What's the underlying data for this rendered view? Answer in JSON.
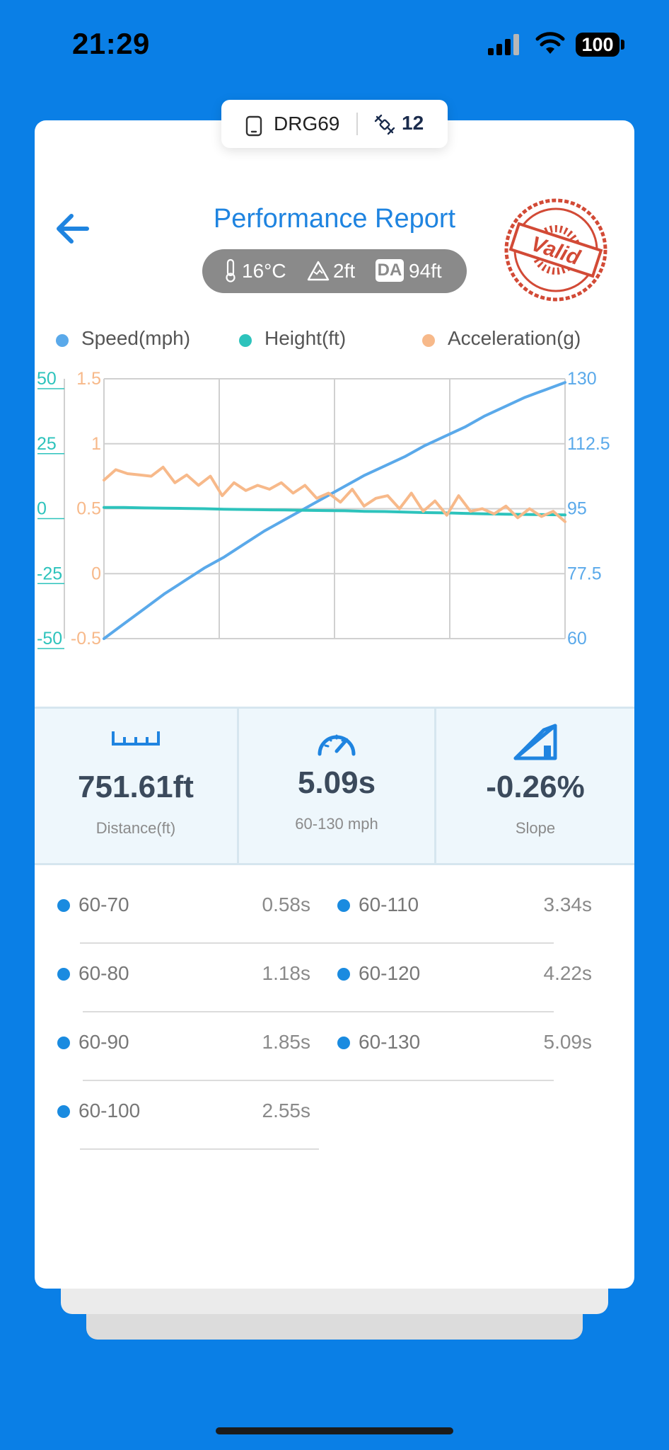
{
  "status_bar": {
    "time": "21:29",
    "battery": "100"
  },
  "device": {
    "name": "DRG69",
    "satellites": "12"
  },
  "header": {
    "title": "Performance Report",
    "stamp": "Valid"
  },
  "conditions": {
    "temperature": "16°C",
    "altitude": "2ft",
    "da_label": "DA",
    "density_altitude": "94ft"
  },
  "legend": [
    {
      "label": "Speed(mph)",
      "color": "#5aa9ea"
    },
    {
      "label": "Height(ft)",
      "color": "#2dc3bc"
    },
    {
      "label": "Acceleration(g)",
      "color": "#f7b98a"
    }
  ],
  "chart_data": {
    "type": "line",
    "axes": {
      "height_left": {
        "ticks": [
          "50",
          "25",
          "0",
          "-25",
          "-50"
        ],
        "range": [
          -50,
          50
        ],
        "color": "#2dc3bc"
      },
      "accel_left": {
        "ticks": [
          "1.5",
          "1",
          "0.5",
          "0",
          "-0.5"
        ],
        "range": [
          -0.5,
          1.5
        ],
        "color": "#f7b98a"
      },
      "speed_right": {
        "ticks": [
          "130",
          "112.5",
          "95",
          "77.5",
          "60"
        ],
        "range": [
          60,
          130
        ],
        "color": "#5aa9ea"
      }
    },
    "grid": true,
    "series": [
      {
        "name": "Speed(mph)",
        "axis": "speed_right",
        "color": "#5aa9ea",
        "values": [
          60,
          64,
          68,
          72,
          75.5,
          79,
          82,
          85.5,
          89,
          92,
          95,
          98,
          101,
          104,
          106.5,
          109,
          112,
          114.5,
          117,
          120,
          122.5,
          125,
          127,
          129
        ]
      },
      {
        "name": "Height(ft)",
        "axis": "height_left",
        "color": "#2dc3bc",
        "values": [
          0.5,
          0.5,
          0.3,
          0.2,
          0.1,
          0,
          -0.2,
          -0.3,
          -0.4,
          -0.5,
          -0.6,
          -0.7,
          -0.8,
          -1,
          -1.1,
          -1.3,
          -1.5,
          -1.6,
          -1.8,
          -2,
          -2.1,
          -2.2,
          -2.3,
          -2.4
        ]
      },
      {
        "name": "Acceleration(g)",
        "axis": "accel_left",
        "color": "#f7b98a",
        "values": [
          0.72,
          0.8,
          0.77,
          0.76,
          0.75,
          0.82,
          0.7,
          0.76,
          0.68,
          0.75,
          0.6,
          0.7,
          0.64,
          0.68,
          0.65,
          0.7,
          0.62,
          0.68,
          0.58,
          0.62,
          0.55,
          0.65,
          0.52,
          0.58,
          0.6,
          0.5,
          0.62,
          0.48,
          0.56,
          0.45,
          0.6,
          0.48,
          0.5,
          0.46,
          0.52,
          0.43,
          0.5,
          0.44,
          0.48,
          0.4
        ]
      }
    ]
  },
  "stats": [
    {
      "value": "751.61ft",
      "label": "Distance(ft)",
      "icon": "ruler-icon"
    },
    {
      "value": "5.09s",
      "label": "60-130 mph",
      "icon": "speedometer-icon"
    },
    {
      "value": "-0.26%",
      "label": "Slope",
      "icon": "slope-icon"
    }
  ],
  "splits": [
    {
      "label": "60-70",
      "value": "0.58s"
    },
    {
      "label": "60-110",
      "value": "3.34s"
    },
    {
      "label": "60-80",
      "value": "1.18s"
    },
    {
      "label": "60-120",
      "value": "4.22s"
    },
    {
      "label": "60-90",
      "value": "1.85s"
    },
    {
      "label": "60-130",
      "value": "5.09s"
    },
    {
      "label": "60-100",
      "value": "2.55s"
    }
  ]
}
